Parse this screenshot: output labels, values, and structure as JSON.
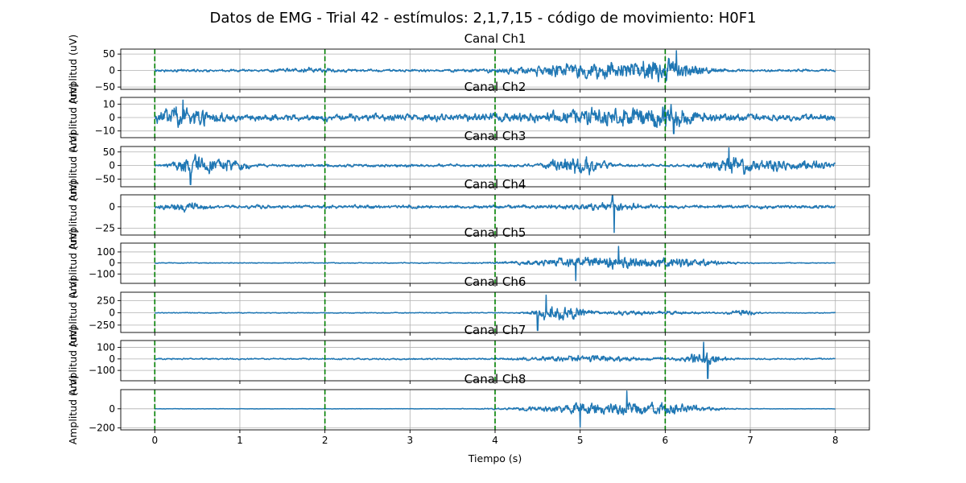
{
  "figure": {
    "title": "Datos de EMG - Trial 42 - estímulos: 2,1,7,15 - código de movimiento: H0F1"
  },
  "chart_data": {
    "type": "line",
    "xlabel": "Tiempo (s)",
    "xlim": [
      -0.4,
      8.4
    ],
    "xticks": [
      0,
      1,
      2,
      3,
      4,
      5,
      6,
      7,
      8
    ],
    "grid": true,
    "line_color": "#1f77b4",
    "stimulus_line_color": "#008000",
    "stimulus_markers_s": [
      0,
      2,
      4,
      6
    ],
    "duration_s": 8,
    "channels": [
      {
        "title": "Canal Ch1",
        "ylabel": "Amplitud (uV)",
        "ylim": [
          -57,
          65
        ],
        "yticks": [
          -50,
          0,
          50
        ],
        "baseline_amplitude": 6,
        "bursts": [
          {
            "center_s": 5.1,
            "width_s": 0.55,
            "amplitude": 35
          },
          {
            "center_s": 6.0,
            "width_s": 0.3,
            "amplitude": 40
          },
          {
            "center_s": 1.8,
            "width_s": 0.2,
            "amplitude": 8
          }
        ],
        "spikes": [
          {
            "t_s": 6.13,
            "value": 60
          }
        ]
      },
      {
        "title": "Canal Ch2",
        "ylabel": "Amplitud (uV)",
        "ylim": [
          -15,
          15
        ],
        "yticks": [
          -10,
          0,
          10
        ],
        "baseline_amplitude": 4,
        "bursts": [
          {
            "center_s": 0.3,
            "width_s": 0.25,
            "amplitude": 8
          },
          {
            "center_s": 5.3,
            "width_s": 0.6,
            "amplitude": 6
          },
          {
            "center_s": 6.0,
            "width_s": 0.25,
            "amplitude": 6
          }
        ],
        "spikes": [
          {
            "t_s": 0.33,
            "value": 13
          },
          {
            "t_s": 6.1,
            "value": -12
          }
        ]
      },
      {
        "title": "Canal Ch3",
        "ylabel": "Amplitud (uV)",
        "ylim": [
          -78,
          70
        ],
        "yticks": [
          -50,
          0,
          50
        ],
        "baseline_amplitude": 8,
        "bursts": [
          {
            "center_s": 0.42,
            "width_s": 0.12,
            "amplitude": 45
          },
          {
            "center_s": 0.7,
            "width_s": 0.15,
            "amplitude": 30
          },
          {
            "center_s": 0.95,
            "width_s": 0.12,
            "amplitude": 18
          },
          {
            "center_s": 5.0,
            "width_s": 0.18,
            "amplitude": 42
          },
          {
            "center_s": 4.85,
            "width_s": 0.15,
            "amplitude": 25
          },
          {
            "center_s": 6.8,
            "width_s": 0.2,
            "amplitude": 45
          },
          {
            "center_s": 7.3,
            "width_s": 0.15,
            "amplitude": 25
          },
          {
            "center_s": 7.75,
            "width_s": 0.18,
            "amplitude": 22
          }
        ],
        "spikes": [
          {
            "t_s": 6.75,
            "value": 65
          },
          {
            "t_s": 0.42,
            "value": -70
          }
        ]
      },
      {
        "title": "Canal Ch4",
        "ylabel": "Amplitud (uV)",
        "ylim": [
          -33,
          14
        ],
        "yticks": [
          -25,
          0
        ],
        "baseline_amplitude": 3,
        "bursts": [
          {
            "center_s": 0.35,
            "width_s": 0.15,
            "amplitude": 6
          },
          {
            "center_s": 5.3,
            "width_s": 0.3,
            "amplitude": 5
          }
        ],
        "spikes": [
          {
            "t_s": 5.4,
            "value": -30
          },
          {
            "t_s": 5.38,
            "value": 13
          }
        ]
      },
      {
        "title": "Canal Ch5",
        "ylabel": "Amplitud (uV)",
        "ylim": [
          -185,
          180
        ],
        "yticks": [
          -100,
          0,
          100
        ],
        "baseline_amplitude": 6,
        "bursts": [
          {
            "center_s": 5.3,
            "width_s": 0.6,
            "amplitude": 85
          },
          {
            "center_s": 6.3,
            "width_s": 0.3,
            "amplitude": 30
          }
        ],
        "spikes": [
          {
            "t_s": 5.45,
            "value": 150
          },
          {
            "t_s": 4.95,
            "value": -160
          }
        ]
      },
      {
        "title": "Canal Ch6",
        "ylabel": "Amplitud (uV)",
        "ylim": [
          -400,
          420
        ],
        "yticks": [
          -250,
          0,
          250
        ],
        "baseline_amplitude": 12,
        "bursts": [
          {
            "center_s": 4.65,
            "width_s": 0.14,
            "amplitude": 230
          },
          {
            "center_s": 4.95,
            "width_s": 0.12,
            "amplitude": 120
          },
          {
            "center_s": 5.7,
            "width_s": 0.5,
            "amplitude": 60
          },
          {
            "center_s": 6.9,
            "width_s": 0.12,
            "amplitude": 70
          }
        ],
        "spikes": [
          {
            "t_s": 4.6,
            "value": 360
          },
          {
            "t_s": 4.5,
            "value": -360
          }
        ]
      },
      {
        "title": "Canal Ch7",
        "ylabel": "Amplitud (uV)",
        "ylim": [
          -190,
          160
        ],
        "yticks": [
          -100,
          0,
          100
        ],
        "baseline_amplitude": 10,
        "bursts": [
          {
            "center_s": 5.1,
            "width_s": 0.5,
            "amplitude": 35
          },
          {
            "center_s": 6.45,
            "width_s": 0.15,
            "amplitude": 85
          }
        ],
        "spikes": [
          {
            "t_s": 6.45,
            "value": 145
          },
          {
            "t_s": 6.5,
            "value": -170
          }
        ]
      },
      {
        "title": "Canal Ch8",
        "ylabel": "Amplitud (uV)",
        "ylim": [
          -220,
          200
        ],
        "yticks": [
          -200,
          0
        ],
        "baseline_amplitude": 3,
        "bursts": [
          {
            "center_s": 5.3,
            "width_s": 0.6,
            "amplitude": 95
          },
          {
            "center_s": 6.1,
            "width_s": 0.3,
            "amplitude": 50
          }
        ],
        "spikes": [
          {
            "t_s": 5.55,
            "value": 185
          },
          {
            "t_s": 5.0,
            "value": -190
          }
        ]
      }
    ]
  }
}
